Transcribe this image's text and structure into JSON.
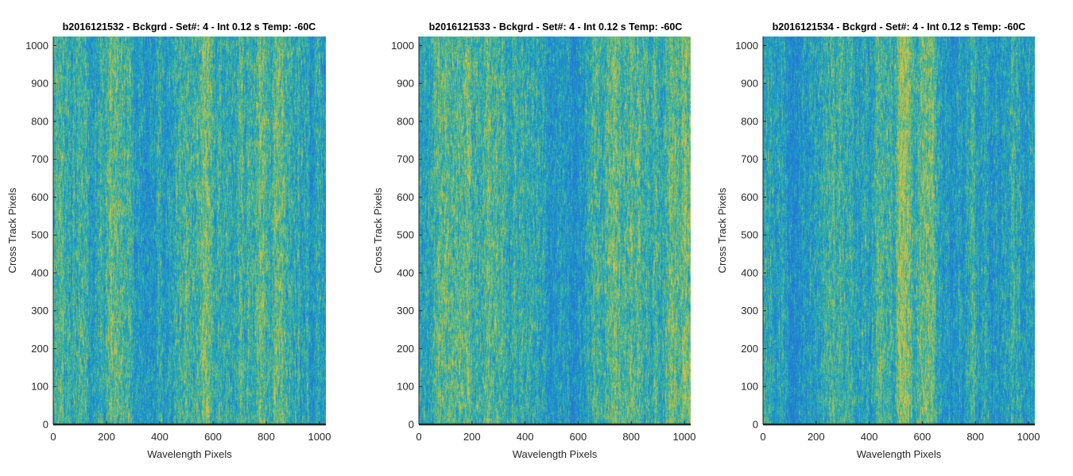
{
  "chart_data": [
    {
      "type": "heatmap",
      "title": "b2016121532 - Bckgrd - Set#: 4 - Int 0.12 s Temp: -60C",
      "xlabel": "Wavelength Pixels",
      "ylabel": "Cross Track Pixels",
      "xlim": [
        0,
        1024
      ],
      "ylim": [
        0,
        1024
      ],
      "xticks": [
        0,
        200,
        400,
        600,
        800,
        1000
      ],
      "yticks": [
        0,
        100,
        200,
        300,
        400,
        500,
        600,
        700,
        800,
        900,
        1000
      ],
      "colormap": "parula",
      "colors": {
        "low": "#1f8fcf",
        "mid": "#30b0aa",
        "high": "#c8be4a"
      },
      "grid": false
    },
    {
      "type": "heatmap",
      "title": "b2016121533 - Bckgrd - Set#: 4 - Int 0.12 s Temp: -60C",
      "xlabel": "Wavelength Pixels",
      "ylabel": "Cross Track Pixels",
      "xlim": [
        0,
        1024
      ],
      "ylim": [
        0,
        1024
      ],
      "xticks": [
        0,
        200,
        400,
        600,
        800,
        1000
      ],
      "yticks": [
        0,
        100,
        200,
        300,
        400,
        500,
        600,
        700,
        800,
        900,
        1000
      ],
      "colormap": "parula",
      "colors": {
        "low": "#1f8fcf",
        "mid": "#30b0aa",
        "high": "#c8be4a"
      },
      "grid": false
    },
    {
      "type": "heatmap",
      "title": "b2016121534 - Bckgrd - Set#: 4 - Int 0.12 s Temp: -60C",
      "xlabel": "Wavelength Pixels",
      "ylabel": "Cross Track Pixels",
      "xlim": [
        0,
        1024
      ],
      "ylim": [
        0,
        1024
      ],
      "xticks": [
        0,
        200,
        400,
        600,
        800,
        1000
      ],
      "yticks": [
        0,
        100,
        200,
        300,
        400,
        500,
        600,
        700,
        800,
        900,
        1000
      ],
      "colormap": "parula",
      "colors": {
        "low": "#1f8fcf",
        "mid": "#30b0aa",
        "high": "#c8be4a"
      },
      "grid": false
    }
  ]
}
